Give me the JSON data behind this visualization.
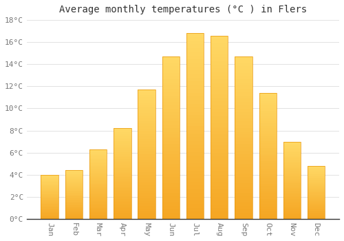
{
  "title": "Average monthly temperatures (°C ) in Flers",
  "months": [
    "Jan",
    "Feb",
    "Mar",
    "Apr",
    "May",
    "Jun",
    "Jul",
    "Aug",
    "Sep",
    "Oct",
    "Nov",
    "Dec"
  ],
  "values": [
    4.0,
    4.4,
    6.3,
    8.2,
    11.7,
    14.7,
    16.8,
    16.6,
    14.7,
    11.4,
    7.0,
    4.8
  ],
  "bar_color_bottom": "#F5A623",
  "bar_color_top": "#FFD966",
  "bar_edge_color": "#E8960A",
  "background_color": "#FFFFFF",
  "grid_color": "#DDDDDD",
  "text_color": "#777777",
  "spine_color": "#333333",
  "ylim": [
    0,
    18
  ],
  "yticks": [
    0,
    2,
    4,
    6,
    8,
    10,
    12,
    14,
    16,
    18
  ],
  "title_fontsize": 10,
  "tick_fontsize": 8,
  "figsize": [
    5.0,
    3.5
  ],
  "dpi": 100,
  "bar_width": 0.72
}
